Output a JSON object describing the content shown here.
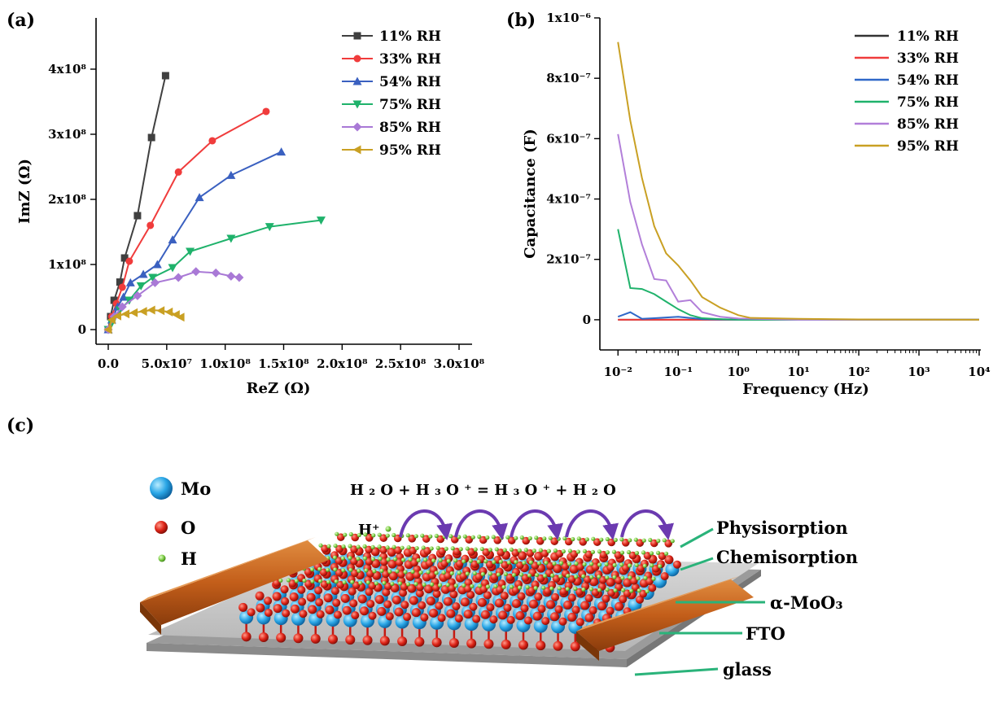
{
  "panels": {
    "a": "(a)",
    "b": "(b)",
    "c": "(c)"
  },
  "chart_data": [
    {
      "type": "line",
      "panel": "(a)",
      "xlabel": "ReZ (Ω)",
      "ylabel": "ImZ (Ω)",
      "xlim": [
        0,
        300000000
      ],
      "ylim": [
        0,
        450000000
      ],
      "xticks": [
        {
          "v": 0,
          "t": "0.0"
        },
        {
          "v": 50000000,
          "t": "5.0x10⁷"
        },
        {
          "v": 100000000,
          "t": "1.0x10⁸"
        },
        {
          "v": 150000000,
          "t": "1.5x10⁸"
        },
        {
          "v": 200000000,
          "t": "2.0x10⁸"
        },
        {
          "v": 250000000,
          "t": "2.5x10⁸"
        },
        {
          "v": 300000000,
          "t": "3.0x10⁸"
        }
      ],
      "yticks": [
        {
          "v": 0,
          "t": "0"
        },
        {
          "v": 100000000,
          "t": "1x10⁸"
        },
        {
          "v": 200000000,
          "t": "2x10⁸"
        },
        {
          "v": 300000000,
          "t": "3x10⁸"
        },
        {
          "v": 400000000,
          "t": "4x10⁸"
        }
      ],
      "legend_position": "top-right",
      "series": [
        {
          "name": "11% RH",
          "color": "#404040",
          "marker": "square",
          "x": [
            0,
            2000000,
            5000000,
            10000000,
            14000000,
            25000000,
            37000000,
            49000000
          ],
          "y": [
            0,
            20000000,
            45000000,
            73000000,
            110000000,
            175000000,
            295000000,
            390000000
          ]
        },
        {
          "name": "33% RH",
          "color": "#f03c3c",
          "marker": "circle",
          "x": [
            0,
            3000000,
            7000000,
            12000000,
            18000000,
            36000000,
            60000000,
            89000000,
            135000000
          ],
          "y": [
            0,
            20000000,
            40000000,
            65000000,
            105000000,
            160000000,
            242000000,
            290000000,
            335000000
          ]
        },
        {
          "name": "54% RH",
          "color": "#3a60c0",
          "marker": "triangle-up",
          "x": [
            0,
            3000000,
            8000000,
            13000000,
            19000000,
            30000000,
            42000000,
            55000000,
            78000000,
            105000000,
            148000000
          ],
          "y": [
            0,
            15000000,
            35000000,
            50000000,
            72000000,
            85000000,
            100000000,
            138000000,
            203000000,
            237000000,
            273000000
          ]
        },
        {
          "name": "75% RH",
          "color": "#1fb26b",
          "marker": "triangle-down",
          "x": [
            0,
            3000000,
            10000000,
            18000000,
            28000000,
            38000000,
            55000000,
            70000000,
            105000000,
            138000000,
            182000000
          ],
          "y": [
            0,
            10000000,
            30000000,
            45000000,
            67000000,
            80000000,
            95000000,
            120000000,
            140000000,
            158000000,
            168000000
          ]
        },
        {
          "name": "85% RH",
          "color": "#a979d6",
          "marker": "diamond",
          "x": [
            0,
            5000000,
            12000000,
            25000000,
            40000000,
            60000000,
            75000000,
            92000000,
            105000000,
            112000000
          ],
          "y": [
            0,
            20000000,
            35000000,
            52000000,
            72000000,
            80000000,
            89000000,
            87000000,
            82000000,
            80000000
          ]
        },
        {
          "name": "95% RH",
          "color": "#c9a023",
          "marker": "triangle-left",
          "x": [
            0,
            3000000,
            8000000,
            15000000,
            22000000,
            30000000,
            37000000,
            45000000,
            52000000,
            58000000,
            62000000
          ],
          "y": [
            0,
            15000000,
            21000000,
            24000000,
            26000000,
            28000000,
            30000000,
            29000000,
            27000000,
            23000000,
            19000000
          ]
        }
      ]
    },
    {
      "type": "line",
      "panel": "(b)",
      "xlabel": "Frequency (Hz)",
      "ylabel": "Capacitance (F)",
      "xscale": "log",
      "xlim": [
        0.005,
        10000
      ],
      "ylim": [
        -1e-07,
        1e-06
      ],
      "xticks": [
        {
          "v": 0.01,
          "t": "10⁻²"
        },
        {
          "v": 0.1,
          "t": "10⁻¹"
        },
        {
          "v": 1,
          "t": "10⁰"
        },
        {
          "v": 10,
          "t": "10¹"
        },
        {
          "v": 100,
          "t": "10²"
        },
        {
          "v": 1000,
          "t": "10³"
        },
        {
          "v": 10000,
          "t": "10⁴"
        }
      ],
      "yticks": [
        {
          "v": 0,
          "t": "0"
        },
        {
          "v": 2e-07,
          "t": "2x10⁻⁷"
        },
        {
          "v": 4e-07,
          "t": "4x10⁻⁷"
        },
        {
          "v": 6e-07,
          "t": "6x10⁻⁷"
        },
        {
          "v": 8e-07,
          "t": "8x10⁻⁷"
        },
        {
          "v": 1e-06,
          "t": "1x10⁻⁶"
        }
      ],
      "legend_position": "top-right",
      "series": [
        {
          "name": "11% RH",
          "color": "#333333",
          "x": [
            0.01,
            0.1,
            1,
            10,
            100,
            1000,
            10000
          ],
          "y": [
            0,
            0,
            0,
            0,
            0,
            0,
            0
          ]
        },
        {
          "name": "33% RH",
          "color": "#f03c3c",
          "x": [
            0.01,
            0.1,
            1,
            10,
            100,
            1000,
            10000
          ],
          "y": [
            0,
            0,
            0,
            0,
            0,
            0,
            0
          ]
        },
        {
          "name": "54% RH",
          "color": "#2f68c8",
          "x": [
            0.01,
            0.016,
            0.025,
            0.04,
            0.1,
            0.25,
            1,
            10,
            10000
          ],
          "y": [
            1e-08,
            2.5e-08,
            3e-09,
            5e-09,
            1e-08,
            2e-09,
            0,
            0,
            0
          ]
        },
        {
          "name": "75% RH",
          "color": "#1fb26b",
          "x": [
            0.01,
            0.016,
            0.025,
            0.04,
            0.063,
            0.1,
            0.16,
            0.25,
            0.5,
            1,
            10,
            10000
          ],
          "y": [
            3e-07,
            1.05e-07,
            1.02e-07,
            8.5e-08,
            6e-08,
            3.5e-08,
            1.5e-08,
            5e-09,
            2e-09,
            0,
            0,
            0
          ]
        },
        {
          "name": "85% RH",
          "color": "#b27fd9",
          "x": [
            0.01,
            0.016,
            0.025,
            0.04,
            0.063,
            0.1,
            0.16,
            0.25,
            0.5,
            1,
            10,
            10000
          ],
          "y": [
            6.15e-07,
            3.9e-07,
            2.5e-07,
            1.35e-07,
            1.3e-07,
            6e-08,
            6.5e-08,
            2.5e-08,
            1e-08,
            4e-09,
            0,
            0
          ]
        },
        {
          "name": "95% RH",
          "color": "#c9a023",
          "x": [
            0.01,
            0.016,
            0.025,
            0.04,
            0.063,
            0.1,
            0.16,
            0.25,
            0.5,
            1,
            1.6,
            10,
            100,
            10000
          ],
          "y": [
            9.2e-07,
            6.6e-07,
            4.7e-07,
            3.1e-07,
            2.2e-07,
            1.8e-07,
            1.3e-07,
            7.5e-08,
            4e-08,
            1.5e-08,
            6e-09,
            3e-09,
            1e-09,
            0
          ]
        }
      ]
    }
  ],
  "diagram": {
    "legend": [
      {
        "key": "mo",
        "label": "Mo",
        "color": "#28a8e8"
      },
      {
        "key": "o",
        "label": "O",
        "color": "#e02a1c"
      },
      {
        "key": "h",
        "label": "H",
        "color": "#7ac943"
      }
    ],
    "equation": "H ₂ O + H ₃ O ⁺ = H ₃ O ⁺ + H ₂ O",
    "hplus": "H⁺",
    "labels": {
      "physisorption": "Physisorption",
      "chemisorption": "Chemisorption",
      "moo3": "α-MoO₃",
      "fto": "FTO",
      "glass": "glass"
    },
    "colors": {
      "electrode": "#c8601e",
      "substrate": "#c4c4c4",
      "arrow": "#6b3ab0",
      "leader": "#2ab37a"
    }
  }
}
